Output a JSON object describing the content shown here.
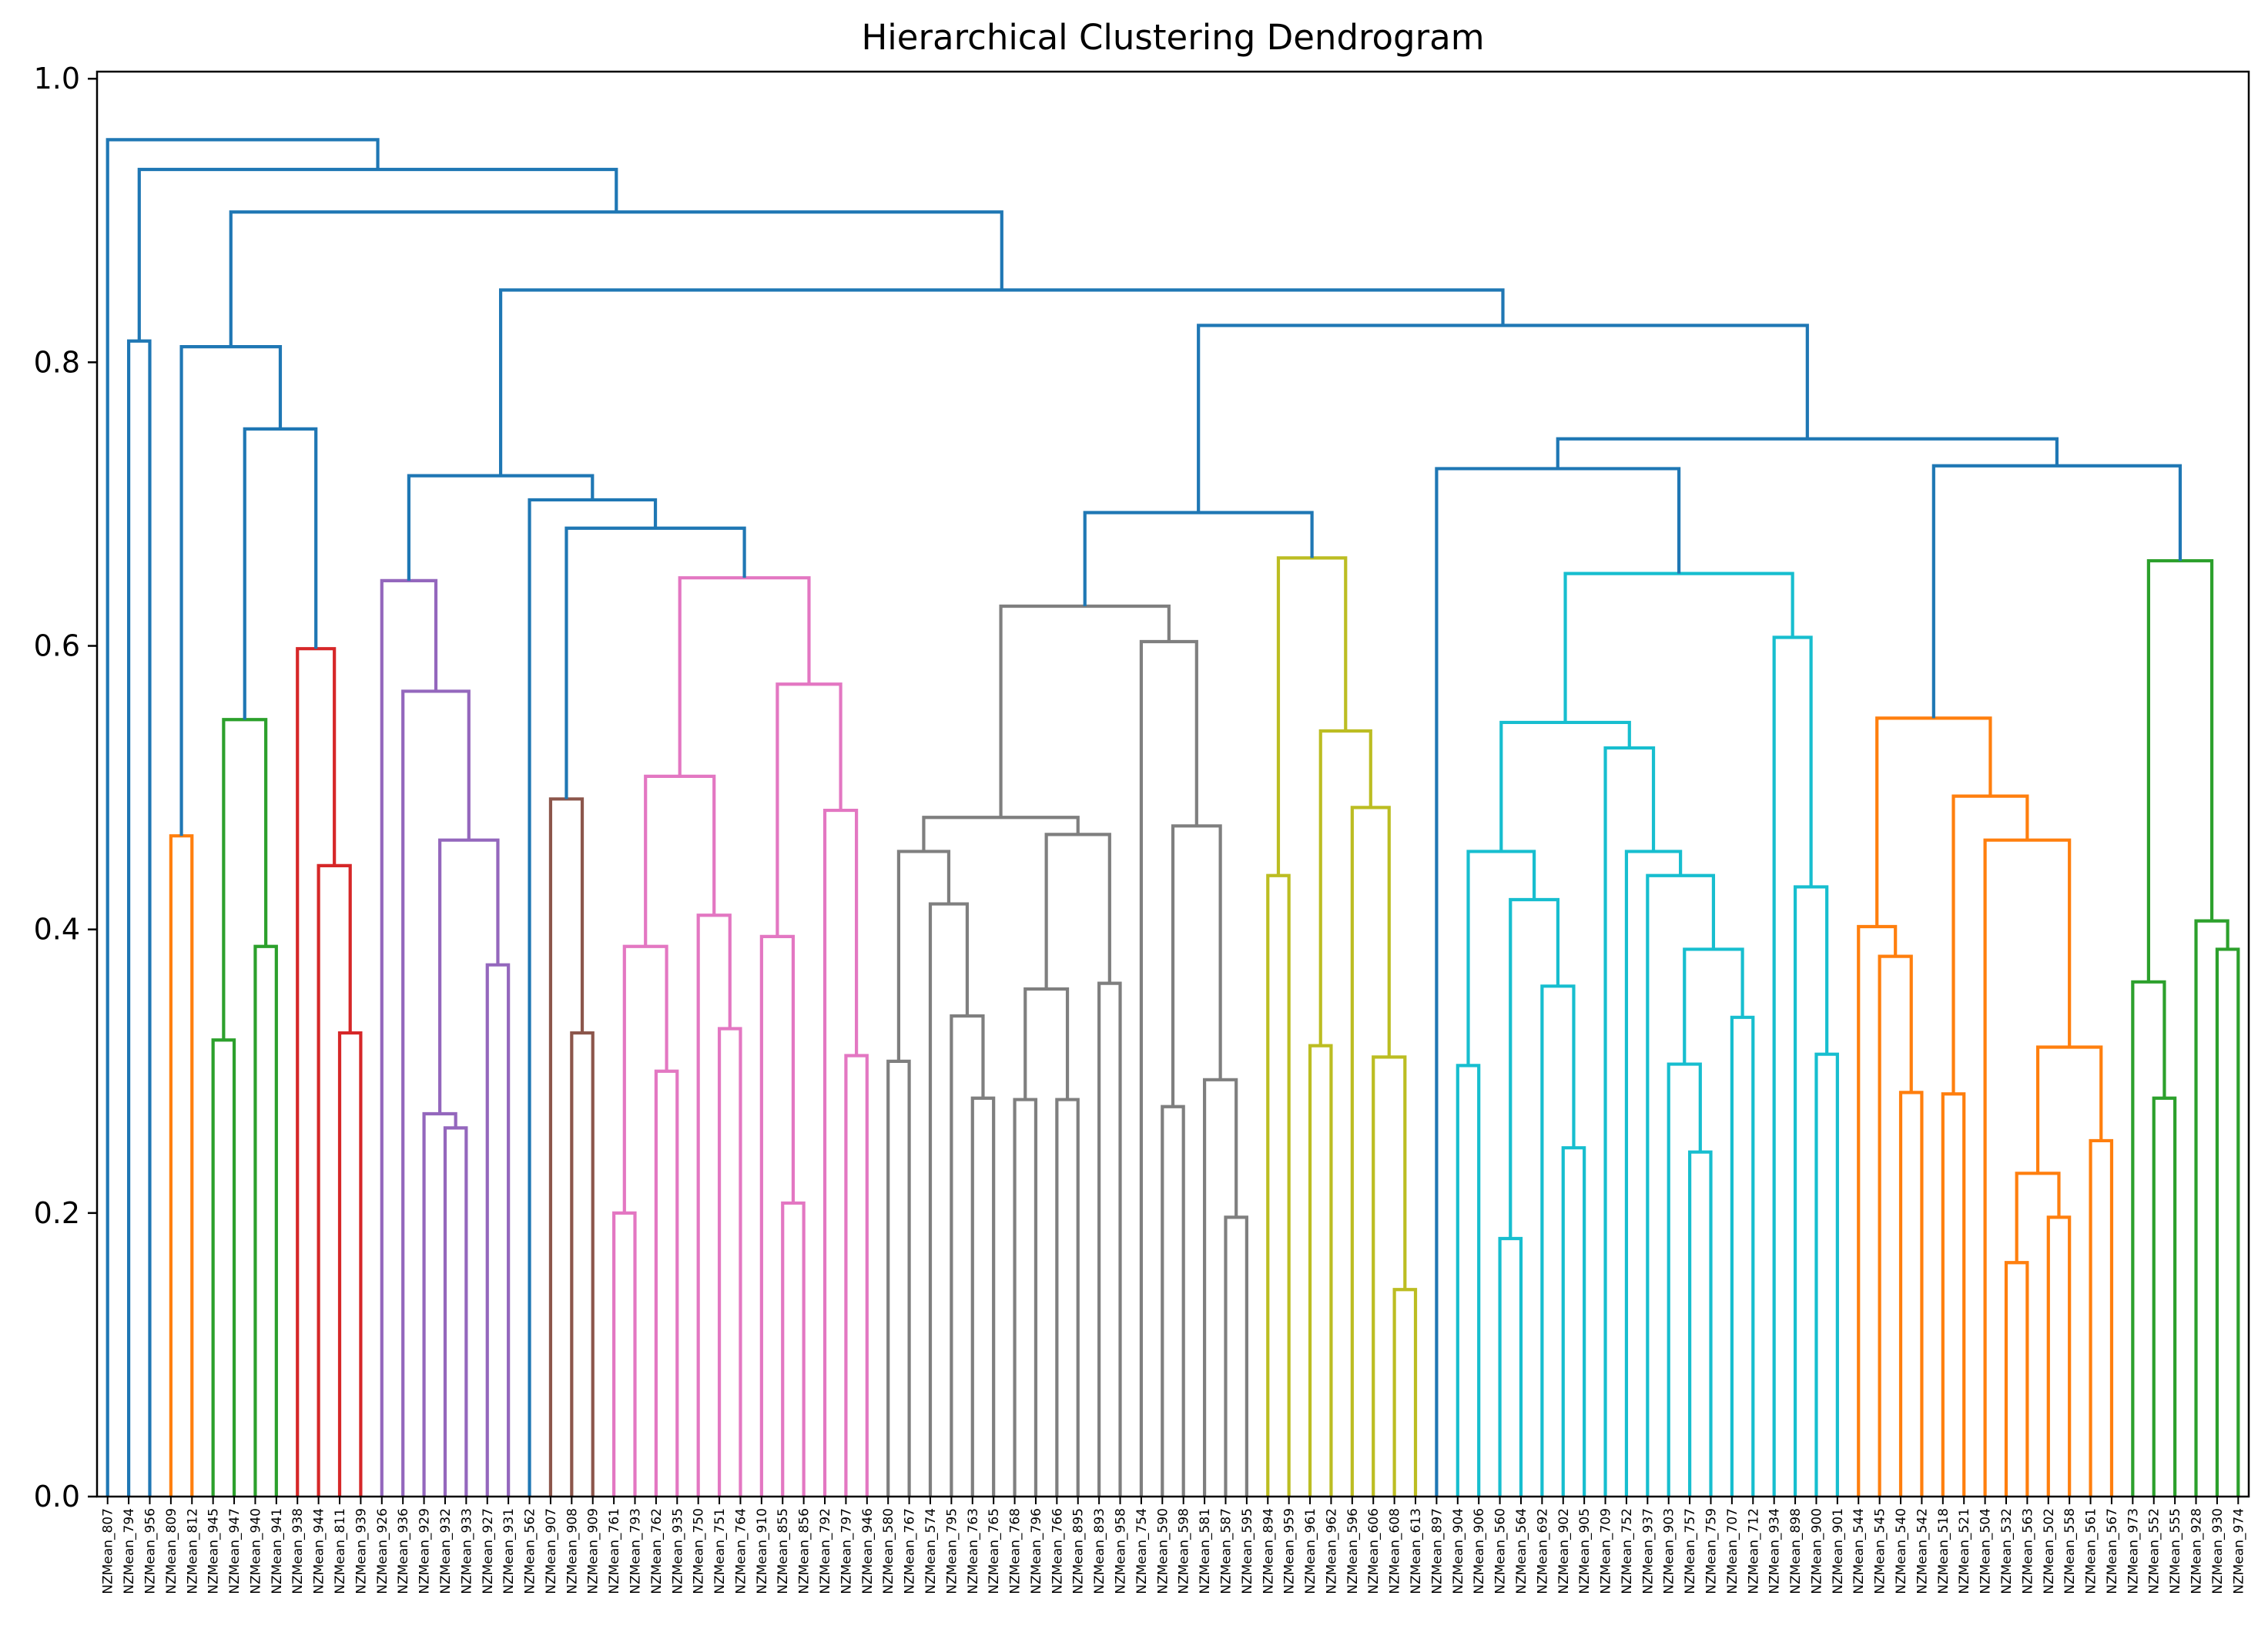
{
  "chart_data": {
    "type": "dendrogram",
    "title": "Hierarchical Clustering Dendrogram",
    "xlabel": "",
    "ylabel": "",
    "ylim": [
      0,
      1.0
    ],
    "yticks": [
      0.0,
      0.2,
      0.4,
      0.6,
      0.8,
      1.0
    ],
    "ytick_labels": [
      "0.0",
      "0.2",
      "0.4",
      "0.6",
      "0.8",
      "1.0"
    ],
    "grid": false,
    "colors": {
      "C0": "#1f77b4",
      "C1": "#ff7f0e",
      "C2": "#2ca02c",
      "C3": "#d62728",
      "C4": "#9467bd",
      "C5": "#8c564b",
      "C6": "#e377c2",
      "C7": "#7f7f7f",
      "C8": "#bcbd22",
      "C9": "#17becf"
    },
    "leaves": [
      "NZMean_807",
      "NZMean_794",
      "NZMean_956",
      "NZMean_809",
      "NZMean_812",
      "NZMean_945",
      "NZMean_947",
      "NZMean_940",
      "NZMean_941",
      "NZMean_938",
      "NZMean_944",
      "NZMean_811",
      "NZMean_939",
      "NZMean_926",
      "NZMean_936",
      "NZMean_929",
      "NZMean_932",
      "NZMean_933",
      "NZMean_927",
      "NZMean_931",
      "NZMean_562",
      "NZMean_907",
      "NZMean_908",
      "NZMean_909",
      "NZMean_761",
      "NZMean_793",
      "NZMean_762",
      "NZMean_935",
      "NZMean_750",
      "NZMean_751",
      "NZMean_764",
      "NZMean_910",
      "NZMean_855",
      "NZMean_856",
      "NZMean_792",
      "NZMean_797",
      "NZMean_946",
      "NZMean_580",
      "NZMean_767",
      "NZMean_574",
      "NZMean_795",
      "NZMean_763",
      "NZMean_765",
      "NZMean_768",
      "NZMean_796",
      "NZMean_766",
      "NZMean_895",
      "NZMean_893",
      "NZMean_958",
      "NZMean_754",
      "NZMean_590",
      "NZMean_598",
      "NZMean_581",
      "NZMean_587",
      "NZMean_595",
      "NZMean_894",
      "NZMean_959",
      "NZMean_961",
      "NZMean_962",
      "NZMean_596",
      "NZMean_606",
      "NZMean_608",
      "NZMean_613",
      "NZMean_897",
      "NZMean_904",
      "NZMean_906",
      "NZMean_560",
      "NZMean_564",
      "NZMean_692",
      "NZMean_902",
      "NZMean_905",
      "NZMean_709",
      "NZMean_752",
      "NZMean_937",
      "NZMean_903",
      "NZMean_757",
      "NZMean_759",
      "NZMean_707",
      "NZMean_712",
      "NZMean_934",
      "NZMean_898",
      "NZMean_900",
      "NZMean_901",
      "NZMean_544",
      "NZMean_545",
      "NZMean_540",
      "NZMean_542",
      "NZMean_518",
      "NZMean_521",
      "NZMean_504",
      "NZMean_532",
      "NZMean_563",
      "NZMean_502",
      "NZMean_558",
      "NZMean_561",
      "NZMean_567",
      "NZMean_973",
      "NZMean_552",
      "NZMean_555",
      "NZMean_928",
      "NZMean_930",
      "NZMean_974"
    ],
    "merges": [
      {
        "a": "L1",
        "b": "L2",
        "h": 0.815,
        "c": "C0"
      },
      {
        "a": "L3",
        "b": "L4",
        "h": 0.466,
        "c": "C1"
      },
      {
        "a": "L5",
        "b": "L6",
        "h": 0.322,
        "c": "C2"
      },
      {
        "a": "L7",
        "b": "L8",
        "h": 0.388,
        "c": "C2"
      },
      {
        "a": "M2",
        "b": "M3",
        "h": 0.548,
        "c": "C2"
      },
      {
        "a": "L11",
        "b": "L12",
        "h": 0.327,
        "c": "C3"
      },
      {
        "a": "L10",
        "b": "M5",
        "h": 0.445,
        "c": "C3"
      },
      {
        "a": "L9",
        "b": "M6",
        "h": 0.598,
        "c": "C3"
      },
      {
        "a": "M4",
        "b": "M7",
        "h": 0.753,
        "c": "C0"
      },
      {
        "a": "M1",
        "b": "M8",
        "h": 0.811,
        "c": "C0"
      },
      {
        "a": "L16",
        "b": "L17",
        "h": 0.26,
        "c": "C4"
      },
      {
        "a": "L15",
        "b": "M10",
        "h": 0.27,
        "c": "C4"
      },
      {
        "a": "L18",
        "b": "L19",
        "h": 0.375,
        "c": "C4"
      },
      {
        "a": "M11",
        "b": "M12",
        "h": 0.463,
        "c": "C4"
      },
      {
        "a": "L14",
        "b": "M13",
        "h": 0.568,
        "c": "C4"
      },
      {
        "a": "L13",
        "b": "M14",
        "h": 0.646,
        "c": "C4"
      },
      {
        "a": "L22",
        "b": "L23",
        "h": 0.327,
        "c": "C5"
      },
      {
        "a": "L21",
        "b": "M16",
        "h": 0.492,
        "c": "C5"
      },
      {
        "a": "L24",
        "b": "L25",
        "h": 0.2,
        "c": "C6"
      },
      {
        "a": "L26",
        "b": "L27",
        "h": 0.3,
        "c": "C6"
      },
      {
        "a": "M18",
        "b": "M19",
        "h": 0.388,
        "c": "C6"
      },
      {
        "a": "L29",
        "b": "L30",
        "h": 0.33,
        "c": "C6"
      },
      {
        "a": "L28",
        "b": "M21",
        "h": 0.41,
        "c": "C6"
      },
      {
        "a": "M20",
        "b": "M22",
        "h": 0.508,
        "c": "C6"
      },
      {
        "a": "L32",
        "b": "L33",
        "h": 0.207,
        "c": "C6"
      },
      {
        "a": "L31",
        "b": "M24",
        "h": 0.395,
        "c": "C6"
      },
      {
        "a": "L35",
        "b": "L36",
        "h": 0.311,
        "c": "C6"
      },
      {
        "a": "L34",
        "b": "M26",
        "h": 0.484,
        "c": "C6"
      },
      {
        "a": "M25",
        "b": "M27",
        "h": 0.573,
        "c": "C6"
      },
      {
        "a": "M23",
        "b": "M28",
        "h": 0.648,
        "c": "C6"
      },
      {
        "a": "M17",
        "b": "M29",
        "h": 0.683,
        "c": "C0"
      },
      {
        "a": "L20",
        "b": "M30",
        "h": 0.703,
        "c": "C0"
      },
      {
        "a": "M15",
        "b": "M31",
        "h": 0.72,
        "c": "C0"
      },
      {
        "a": "L37",
        "b": "L38",
        "h": 0.307,
        "c": "C7"
      },
      {
        "a": "L41",
        "b": "L42",
        "h": 0.281,
        "c": "C7"
      },
      {
        "a": "L40",
        "b": "M34",
        "h": 0.339,
        "c": "C7"
      },
      {
        "a": "L39",
        "b": "M35",
        "h": 0.418,
        "c": "C7"
      },
      {
        "a": "M33",
        "b": "M36",
        "h": 0.455,
        "c": "C7"
      },
      {
        "a": "L43",
        "b": "L44",
        "h": 0.28,
        "c": "C7"
      },
      {
        "a": "L45",
        "b": "L46",
        "h": 0.28,
        "c": "C7"
      },
      {
        "a": "M38",
        "b": "M39",
        "h": 0.358,
        "c": "C7"
      },
      {
        "a": "L47",
        "b": "L48",
        "h": 0.362,
        "c": "C7"
      },
      {
        "a": "M40",
        "b": "M41",
        "h": 0.467,
        "c": "C7"
      },
      {
        "a": "M37",
        "b": "M42",
        "h": 0.479,
        "c": "C7"
      },
      {
        "a": "L50",
        "b": "L51",
        "h": 0.275,
        "c": "C7"
      },
      {
        "a": "L53",
        "b": "L54",
        "h": 0.197,
        "c": "C7"
      },
      {
        "a": "L52",
        "b": "M45",
        "h": 0.294,
        "c": "C7"
      },
      {
        "a": "M44",
        "b": "M46",
        "h": 0.473,
        "c": "C7"
      },
      {
        "a": "L49",
        "b": "M47",
        "h": 0.603,
        "c": "C7"
      },
      {
        "a": "M43",
        "b": "M48",
        "h": 0.628,
        "c": "C7"
      },
      {
        "a": "L55",
        "b": "L56",
        "h": 0.438,
        "c": "C8"
      },
      {
        "a": "L61",
        "b": "L62",
        "h": 0.146,
        "c": "C8"
      },
      {
        "a": "L60",
        "b": "M51",
        "h": 0.31,
        "c": "C8"
      },
      {
        "a": "L59",
        "b": "M52",
        "h": 0.486,
        "c": "C8"
      },
      {
        "a": "L57",
        "b": "L58",
        "h": 0.318,
        "c": "C8"
      },
      {
        "a": "M54",
        "b": "M53",
        "h": 0.54,
        "c": "C8"
      },
      {
        "a": "M50",
        "b": "M55",
        "h": 0.662,
        "c": "C8"
      },
      {
        "a": "M49",
        "b": "M56",
        "h": 0.694,
        "c": "C0"
      },
      {
        "a": "L64",
        "b": "L65",
        "h": 0.304,
        "c": "C9"
      },
      {
        "a": "L66",
        "b": "L67",
        "h": 0.182,
        "c": "C9"
      },
      {
        "a": "L69",
        "b": "L70",
        "h": 0.246,
        "c": "C9"
      },
      {
        "a": "L68",
        "b": "M60",
        "h": 0.36,
        "c": "C9"
      },
      {
        "a": "M59",
        "b": "M61",
        "h": 0.421,
        "c": "C9"
      },
      {
        "a": "M58",
        "b": "M62",
        "h": 0.455,
        "c": "C9"
      },
      {
        "a": "L75",
        "b": "L76",
        "h": 0.243,
        "c": "C9"
      },
      {
        "a": "L74",
        "b": "M64",
        "h": 0.305,
        "c": "C9"
      },
      {
        "a": "L77",
        "b": "L78",
        "h": 0.338,
        "c": "C9"
      },
      {
        "a": "M65",
        "b": "M66",
        "h": 0.386,
        "c": "C9"
      },
      {
        "a": "L73",
        "b": "M67",
        "h": 0.438,
        "c": "C9"
      },
      {
        "a": "L72",
        "b": "M68",
        "h": 0.455,
        "c": "C9"
      },
      {
        "a": "L71",
        "b": "M69",
        "h": 0.528,
        "c": "C9"
      },
      {
        "a": "M63",
        "b": "M70",
        "h": 0.546,
        "c": "C9"
      },
      {
        "a": "L81",
        "b": "L82",
        "h": 0.312,
        "c": "C9"
      },
      {
        "a": "L80",
        "b": "M72",
        "h": 0.43,
        "c": "C9"
      },
      {
        "a": "L79",
        "b": "M73",
        "h": 0.606,
        "c": "C9"
      },
      {
        "a": "M71",
        "b": "M74",
        "h": 0.651,
        "c": "C9"
      },
      {
        "a": "L63",
        "b": "M75",
        "h": 0.725,
        "c": "C0"
      },
      {
        "a": "L85",
        "b": "L86",
        "h": 0.285,
        "c": "C1"
      },
      {
        "a": "L84",
        "b": "M77",
        "h": 0.381,
        "c": "C1"
      },
      {
        "a": "L83",
        "b": "M78",
        "h": 0.402,
        "c": "C1"
      },
      {
        "a": "L90",
        "b": "L91",
        "h": 0.165,
        "c": "C1"
      },
      {
        "a": "L92",
        "b": "L93",
        "h": 0.197,
        "c": "C1"
      },
      {
        "a": "M80",
        "b": "M81",
        "h": 0.228,
        "c": "C1"
      },
      {
        "a": "L94",
        "b": "L95",
        "h": 0.251,
        "c": "C1"
      },
      {
        "a": "M82",
        "b": "M83",
        "h": 0.317,
        "c": "C1"
      },
      {
        "a": "L89",
        "b": "M84",
        "h": 0.463,
        "c": "C1"
      },
      {
        "a": "L87",
        "b": "L88",
        "h": 0.284,
        "c": "C1"
      },
      {
        "a": "M86",
        "b": "M85",
        "h": 0.494,
        "c": "C1"
      },
      {
        "a": "M79",
        "b": "M87",
        "h": 0.549,
        "c": "C1"
      },
      {
        "a": "L97",
        "b": "L98",
        "h": 0.281,
        "c": "C2"
      },
      {
        "a": "L96",
        "b": "M89",
        "h": 0.363,
        "c": "C2"
      },
      {
        "a": "L100",
        "b": "L101",
        "h": 0.386,
        "c": "C2"
      },
      {
        "a": "L99",
        "b": "M91",
        "h": 0.406,
        "c": "C2"
      },
      {
        "a": "M90",
        "b": "M92",
        "h": 0.66,
        "c": "C2"
      },
      {
        "a": "M88",
        "b": "M93",
        "h": 0.727,
        "c": "C0"
      },
      {
        "a": "M76",
        "b": "M94",
        "h": 0.746,
        "c": "C0"
      },
      {
        "a": "M57",
        "b": "M95",
        "h": 0.826,
        "c": "C0"
      },
      {
        "a": "M32",
        "b": "M96",
        "h": 0.851,
        "c": "C0"
      },
      {
        "a": "M9",
        "b": "M97",
        "h": 0.906,
        "c": "C0"
      },
      {
        "a": "M0",
        "b": "M98",
        "h": 0.936,
        "c": "C0"
      },
      {
        "a": "L0",
        "b": "M99",
        "h": 0.957,
        "c": "C0"
      }
    ]
  }
}
